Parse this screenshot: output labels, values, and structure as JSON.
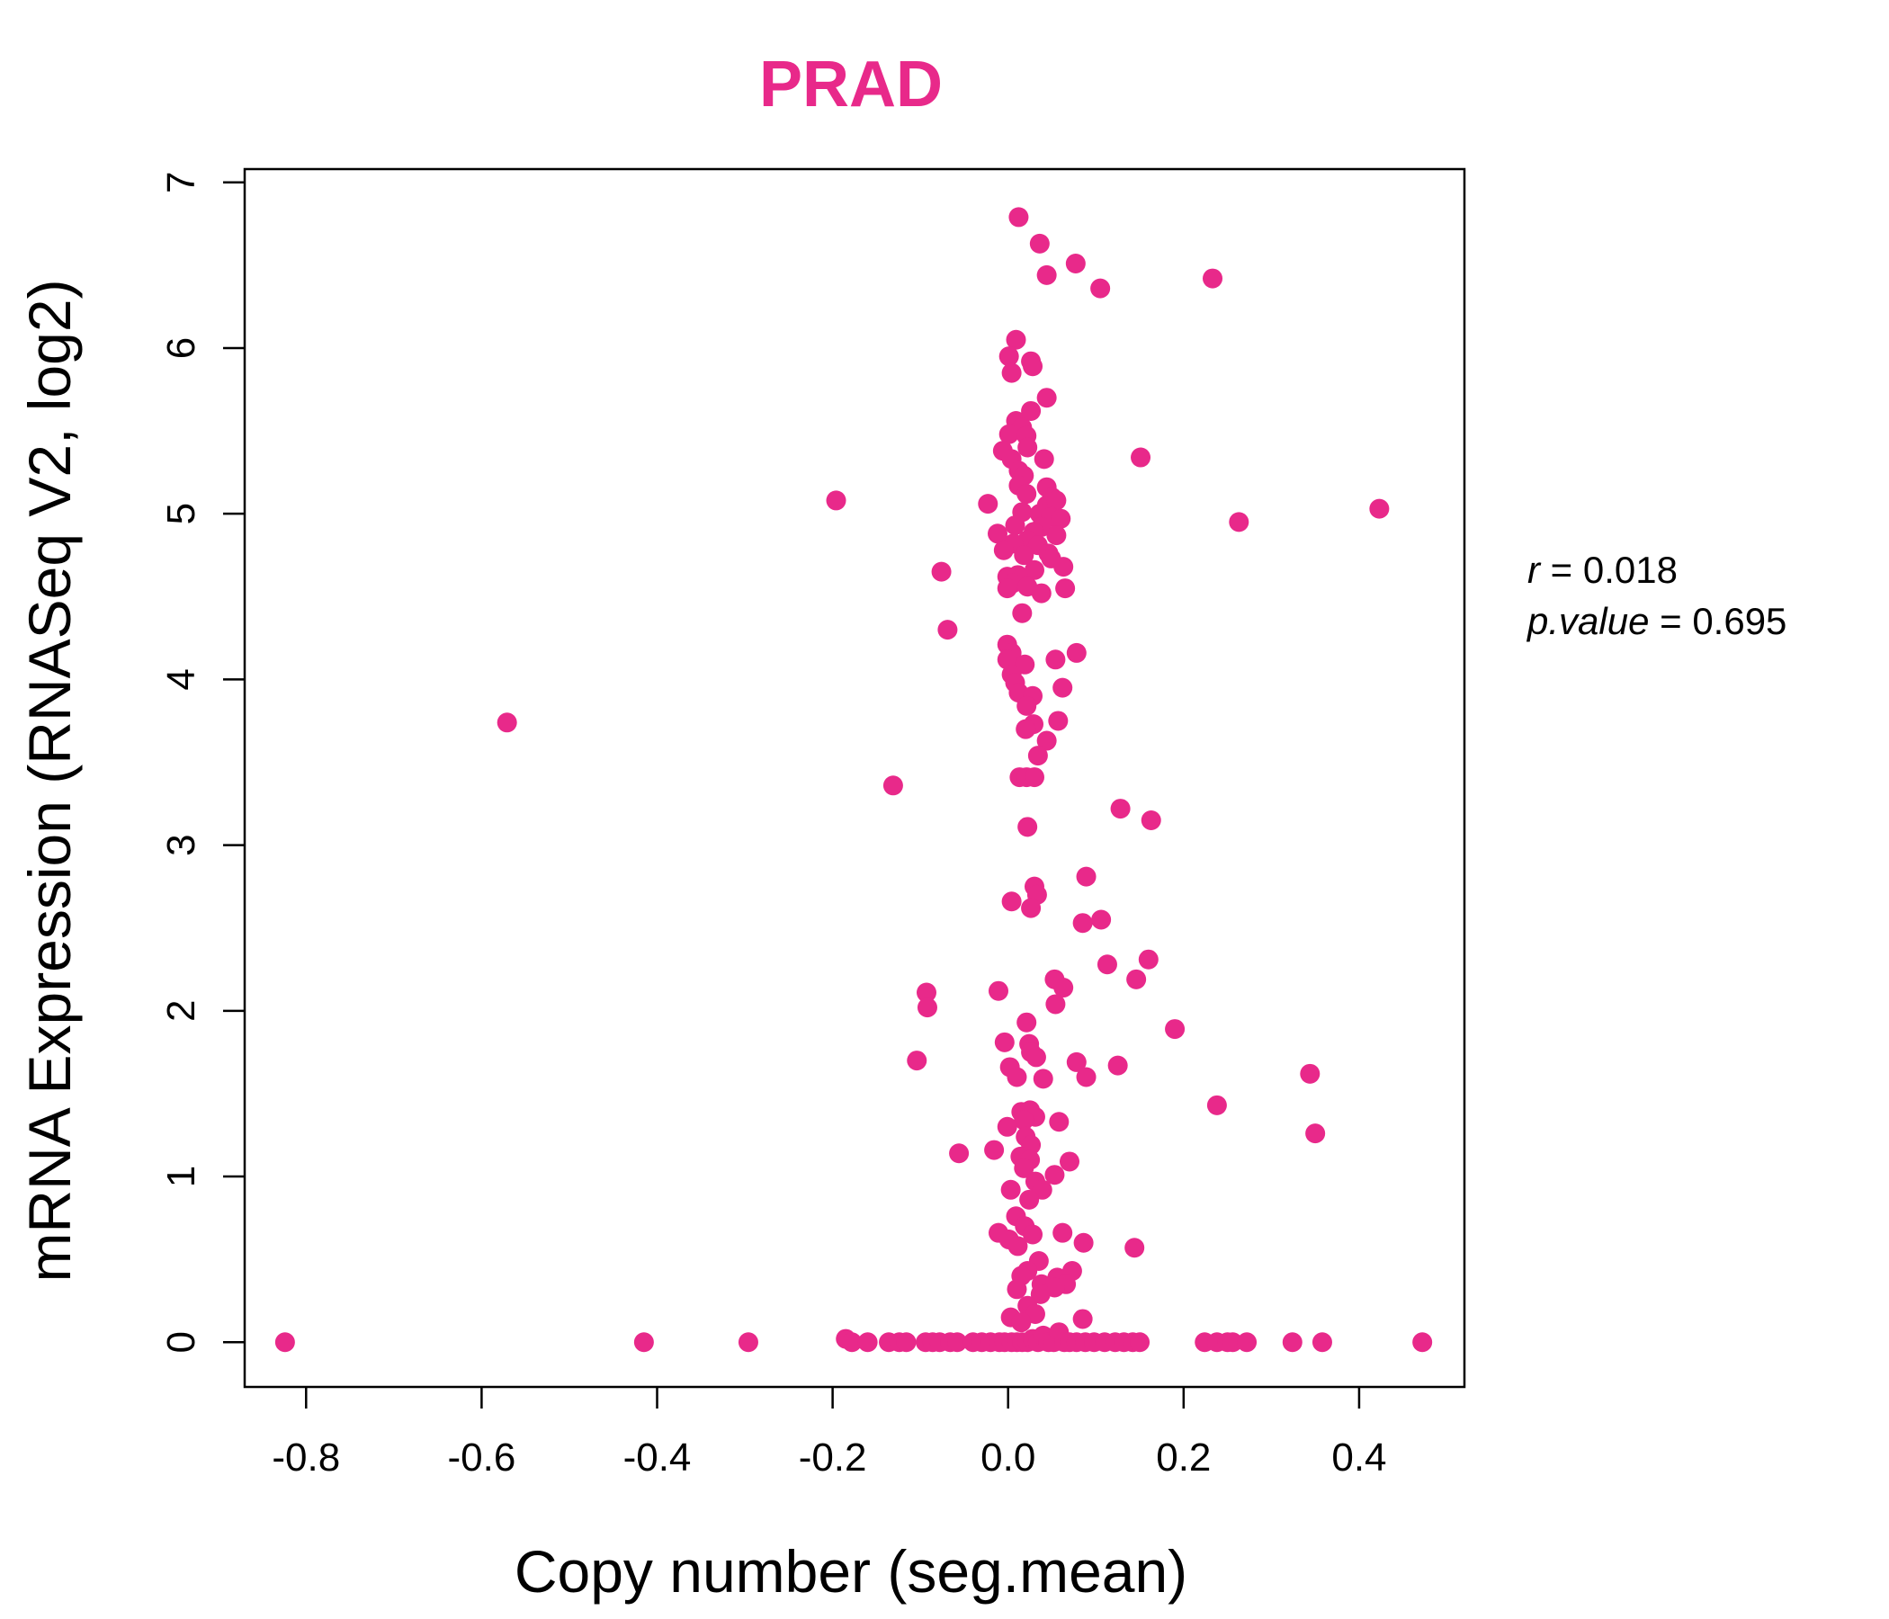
{
  "chart_data": {
    "type": "scatter",
    "title": "PRAD",
    "xlabel": "Copy number (seg.mean)",
    "ylabel": "mRNA Expression (RNASeq V2, log2)",
    "xlim": [
      -0.87,
      0.52
    ],
    "ylim": [
      -0.27,
      7.08
    ],
    "x_ticks": [
      -0.8,
      -0.6,
      -0.4,
      -0.2,
      0.0,
      0.2,
      0.4
    ],
    "x_tick_labels": [
      "-0.8",
      "-0.6",
      "-0.4",
      "-0.2",
      "0.0",
      "0.2",
      "0.4"
    ],
    "y_ticks": [
      0,
      1,
      2,
      3,
      4,
      5,
      6,
      7
    ],
    "y_tick_labels": [
      "0",
      "1",
      "2",
      "3",
      "4",
      "5",
      "6",
      "7"
    ],
    "grid": false,
    "point_color": "#E8298A",
    "stats": {
      "r_label": "r",
      "r_value": "0.018",
      "p_label": "p.value",
      "p_value": "0.695"
    },
    "points": [
      [
        0.012,
        6.79
      ],
      [
        0.036,
        6.63
      ],
      [
        0.077,
        6.51
      ],
      [
        0.044,
        6.44
      ],
      [
        0.105,
        6.36
      ],
      [
        0.233,
        6.42
      ],
      [
        0.009,
        6.05
      ],
      [
        0.001,
        5.95
      ],
      [
        0.026,
        5.92
      ],
      [
        0.028,
        5.89
      ],
      [
        0.004,
        5.85
      ],
      [
        0.044,
        5.7
      ],
      [
        0.026,
        5.62
      ],
      [
        0.009,
        5.56
      ],
      [
        0.016,
        5.52
      ],
      [
        0.001,
        5.48
      ],
      [
        0.021,
        5.47
      ],
      [
        0.022,
        5.4
      ],
      [
        -0.006,
        5.38
      ],
      [
        0.004,
        5.33
      ],
      [
        0.041,
        5.33
      ],
      [
        0.151,
        5.34
      ],
      [
        0.012,
        5.26
      ],
      [
        0.018,
        5.23
      ],
      [
        0.012,
        5.17
      ],
      [
        0.044,
        5.16
      ],
      [
        0.021,
        5.12
      ],
      [
        0.05,
        5.1
      ],
      [
        -0.023,
        5.06
      ],
      [
        0.044,
        5.05
      ],
      [
        0.055,
        5.08
      ],
      [
        0.016,
        5.01
      ],
      [
        0.036,
        5.0
      ],
      [
        0.049,
        4.98
      ],
      [
        0.06,
        4.97
      ],
      [
        0.008,
        4.93
      ],
      [
        0.038,
        4.92
      ],
      [
        0.029,
        4.89
      ],
      [
        -0.012,
        4.88
      ],
      [
        0.055,
        4.87
      ],
      [
        0.022,
        4.84
      ],
      [
        0.006,
        4.82
      ],
      [
        0.034,
        4.81
      ],
      [
        -0.005,
        4.78
      ],
      [
        0.046,
        4.76
      ],
      [
        0.018,
        4.75
      ],
      [
        0.049,
        4.73
      ],
      [
        0.063,
        4.68
      ],
      [
        0.03,
        4.66
      ],
      [
        0.011,
        4.63
      ],
      [
        -0.001,
        4.62
      ],
      [
        -0.076,
        4.65
      ],
      [
        0.005,
        4.58
      ],
      [
        -0.001,
        4.55
      ],
      [
        0.022,
        4.56
      ],
      [
        0.065,
        4.55
      ],
      [
        0.038,
        4.52
      ],
      [
        0.016,
        4.4
      ],
      [
        -0.069,
        4.3
      ],
      [
        -0.196,
        5.08
      ],
      [
        0.263,
        4.95
      ],
      [
        0.423,
        5.03
      ],
      [
        -0.001,
        4.21
      ],
      [
        0.004,
        4.16
      ],
      [
        0.078,
        4.16
      ],
      [
        -0.001,
        4.12
      ],
      [
        0.054,
        4.12
      ],
      [
        0.019,
        4.09
      ],
      [
        0.004,
        4.03
      ],
      [
        0.008,
        3.98
      ],
      [
        0.062,
        3.95
      ],
      [
        0.012,
        3.92
      ],
      [
        0.028,
        3.9
      ],
      [
        0.021,
        3.84
      ],
      [
        0.057,
        3.75
      ],
      [
        0.029,
        3.73
      ],
      [
        0.02,
        3.7
      ],
      [
        0.044,
        3.63
      ],
      [
        0.034,
        3.54
      ],
      [
        0.013,
        3.41
      ],
      [
        0.021,
        3.41
      ],
      [
        0.03,
        3.41
      ],
      [
        -0.571,
        3.74
      ],
      [
        -0.131,
        3.36
      ],
      [
        0.022,
        3.11
      ],
      [
        0.128,
        3.22
      ],
      [
        0.163,
        3.15
      ],
      [
        0.089,
        2.81
      ],
      [
        0.03,
        2.75
      ],
      [
        0.033,
        2.7
      ],
      [
        0.004,
        2.66
      ],
      [
        0.026,
        2.62
      ],
      [
        0.106,
        2.55
      ],
      [
        0.085,
        2.53
      ],
      [
        0.113,
        2.28
      ],
      [
        0.16,
        2.31
      ],
      [
        0.146,
        2.19
      ],
      [
        0.053,
        2.19
      ],
      [
        0.063,
        2.14
      ],
      [
        0.054,
        2.04
      ],
      [
        -0.011,
        2.12
      ],
      [
        -0.093,
        2.11
      ],
      [
        -0.092,
        2.02
      ],
      [
        0.021,
        1.93
      ],
      [
        0.19,
        1.89
      ],
      [
        -0.004,
        1.81
      ],
      [
        0.024,
        1.8
      ],
      [
        0.026,
        1.75
      ],
      [
        0.032,
        1.72
      ],
      [
        -0.104,
        1.7
      ],
      [
        0.078,
        1.69
      ],
      [
        0.125,
        1.67
      ],
      [
        0.002,
        1.66
      ],
      [
        0.01,
        1.6
      ],
      [
        0.04,
        1.59
      ],
      [
        0.089,
        1.6
      ],
      [
        0.344,
        1.62
      ],
      [
        0.015,
        1.39
      ],
      [
        0.025,
        1.4
      ],
      [
        0.031,
        1.36
      ],
      [
        0.018,
        1.34
      ],
      [
        0.058,
        1.33
      ],
      [
        0.238,
        1.43
      ],
      [
        0.35,
        1.26
      ],
      [
        -0.001,
        1.3
      ],
      [
        0.02,
        1.24
      ],
      [
        0.026,
        1.19
      ],
      [
        -0.056,
        1.14
      ],
      [
        -0.016,
        1.16
      ],
      [
        0.014,
        1.12
      ],
      [
        0.025,
        1.1
      ],
      [
        0.07,
        1.09
      ],
      [
        0.018,
        1.05
      ],
      [
        0.053,
        1.01
      ],
      [
        0.031,
        0.97
      ],
      [
        0.003,
        0.92
      ],
      [
        0.039,
        0.92
      ],
      [
        0.024,
        0.86
      ],
      [
        0.009,
        0.76
      ],
      [
        0.019,
        0.7
      ],
      [
        -0.011,
        0.66
      ],
      [
        0.001,
        0.62
      ],
      [
        0.028,
        0.65
      ],
      [
        0.062,
        0.66
      ],
      [
        0.086,
        0.6
      ],
      [
        0.144,
        0.57
      ],
      [
        0.011,
        0.58
      ],
      [
        0.035,
        0.49
      ],
      [
        0.022,
        0.43
      ],
      [
        0.073,
        0.43
      ],
      [
        0.015,
        0.4
      ],
      [
        0.056,
        0.39
      ],
      [
        0.038,
        0.35
      ],
      [
        0.066,
        0.35
      ],
      [
        0.01,
        0.32
      ],
      [
        0.053,
        0.33
      ],
      [
        0.037,
        0.29
      ],
      [
        0.022,
        0.22
      ],
      [
        0.003,
        0.15
      ],
      [
        0.031,
        0.17
      ],
      [
        0.085,
        0.14
      ],
      [
        0.015,
        0.12
      ],
      [
        -0.824,
        0.0
      ],
      [
        -0.415,
        0.0
      ],
      [
        -0.296,
        0.0
      ],
      [
        -0.185,
        0.02
      ],
      [
        -0.178,
        0.0
      ],
      [
        -0.16,
        0.0
      ],
      [
        -0.136,
        0.0
      ],
      [
        -0.124,
        0.0
      ],
      [
        -0.116,
        0.0
      ],
      [
        -0.094,
        0.0
      ],
      [
        -0.086,
        0.0
      ],
      [
        -0.078,
        0.0
      ],
      [
        -0.066,
        0.0
      ],
      [
        -0.058,
        0.0
      ],
      [
        -0.04,
        0.0
      ],
      [
        -0.03,
        0.0
      ],
      [
        -0.02,
        0.0
      ],
      [
        -0.01,
        0.0
      ],
      [
        -0.004,
        0.0
      ],
      [
        0.004,
        0.0
      ],
      [
        0.01,
        0.0
      ],
      [
        0.016,
        0.0
      ],
      [
        0.022,
        0.0
      ],
      [
        0.028,
        0.02
      ],
      [
        0.034,
        0.0
      ],
      [
        0.04,
        0.04
      ],
      [
        0.046,
        0.0
      ],
      [
        0.052,
        0.0
      ],
      [
        0.058,
        0.06
      ],
      [
        0.064,
        0.0
      ],
      [
        0.07,
        0.0
      ],
      [
        0.078,
        0.0
      ],
      [
        0.088,
        0.0
      ],
      [
        0.098,
        0.0
      ],
      [
        0.11,
        0.0
      ],
      [
        0.122,
        0.0
      ],
      [
        0.132,
        0.0
      ],
      [
        0.142,
        0.0
      ],
      [
        0.15,
        0.0
      ],
      [
        0.224,
        0.0
      ],
      [
        0.238,
        0.0
      ],
      [
        0.25,
        0.0
      ],
      [
        0.256,
        0.0
      ],
      [
        0.272,
        0.0
      ],
      [
        0.324,
        0.0
      ],
      [
        0.358,
        0.0
      ],
      [
        0.472,
        0.0
      ]
    ]
  }
}
